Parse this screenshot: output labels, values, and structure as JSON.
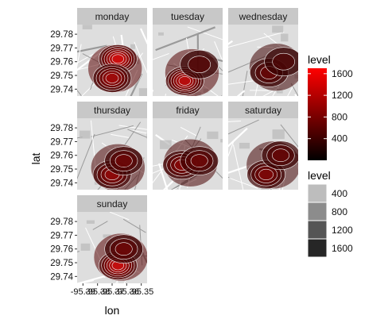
{
  "chart_data": {
    "type": "heatmap",
    "subtype": "faceted map density (stat_density2d polygons over street-map tiles)",
    "xlabel": "lon",
    "ylabel": "lat",
    "x_tick_labels": [
      "-95.39",
      "-95.38",
      "-95.37",
      "-95.36",
      "-95.35"
    ],
    "y_tick_labels": [
      "29.78",
      "29.77",
      "29.76",
      "29.75",
      "29.74"
    ],
    "y_ticks": [
      29.78,
      29.77,
      29.76,
      29.75,
      29.74
    ],
    "ylim": [
      29.735,
      29.787
    ],
    "xlim": [
      -95.394,
      -95.346
    ],
    "facets": [
      {
        "label": "monday",
        "hotspots": [
          {
            "lon": -95.366,
            "lat": 29.762,
            "level": 1600
          },
          {
            "lon": -95.37,
            "lat": 29.748,
            "level": 1200
          }
        ]
      },
      {
        "label": "tuesday",
        "hotspots": [
          {
            "lon": -95.372,
            "lat": 29.746,
            "level": 1400
          },
          {
            "lon": -95.362,
            "lat": 29.758,
            "level": 600
          }
        ]
      },
      {
        "label": "wednesday",
        "hotspots": [
          {
            "lon": -95.366,
            "lat": 29.752,
            "level": 700
          },
          {
            "lon": -95.356,
            "lat": 29.76,
            "level": 500
          }
        ]
      },
      {
        "label": "thursday",
        "hotspots": [
          {
            "lon": -95.37,
            "lat": 29.746,
            "level": 1100
          },
          {
            "lon": -95.362,
            "lat": 29.756,
            "level": 800
          }
        ]
      },
      {
        "label": "friday",
        "hotspots": [
          {
            "lon": -95.374,
            "lat": 29.753,
            "level": 1000
          },
          {
            "lon": -95.362,
            "lat": 29.756,
            "level": 800
          }
        ]
      },
      {
        "label": "saturday",
        "hotspots": [
          {
            "lon": -95.368,
            "lat": 29.746,
            "level": 900
          },
          {
            "lon": -95.358,
            "lat": 29.76,
            "level": 700
          }
        ]
      },
      {
        "label": "sunday",
        "hotspots": [
          {
            "lon": -95.366,
            "lat": 29.748,
            "level": 1500
          },
          {
            "lon": -95.362,
            "lat": 29.76,
            "level": 800
          }
        ]
      }
    ],
    "legend_fill": {
      "title": "level",
      "labels": [
        "1600",
        "1200",
        "800",
        "400"
      ],
      "values": [
        1600,
        1200,
        800,
        400
      ],
      "range": [
        0,
        1700
      ],
      "colors": [
        "#000000",
        "#ff0000"
      ]
    },
    "legend_alpha": {
      "title": "level",
      "labels": [
        "400",
        "800",
        "1200",
        "1600"
      ],
      "values": [
        400,
        800,
        1200,
        1600
      ],
      "colors": [
        "#bdbdbd",
        "#8c8c8c",
        "#555555",
        "#262626"
      ]
    },
    "strip_color": "#c8c8c8",
    "map_bg_color": "#dedede",
    "legend": "right",
    "grid": false
  }
}
